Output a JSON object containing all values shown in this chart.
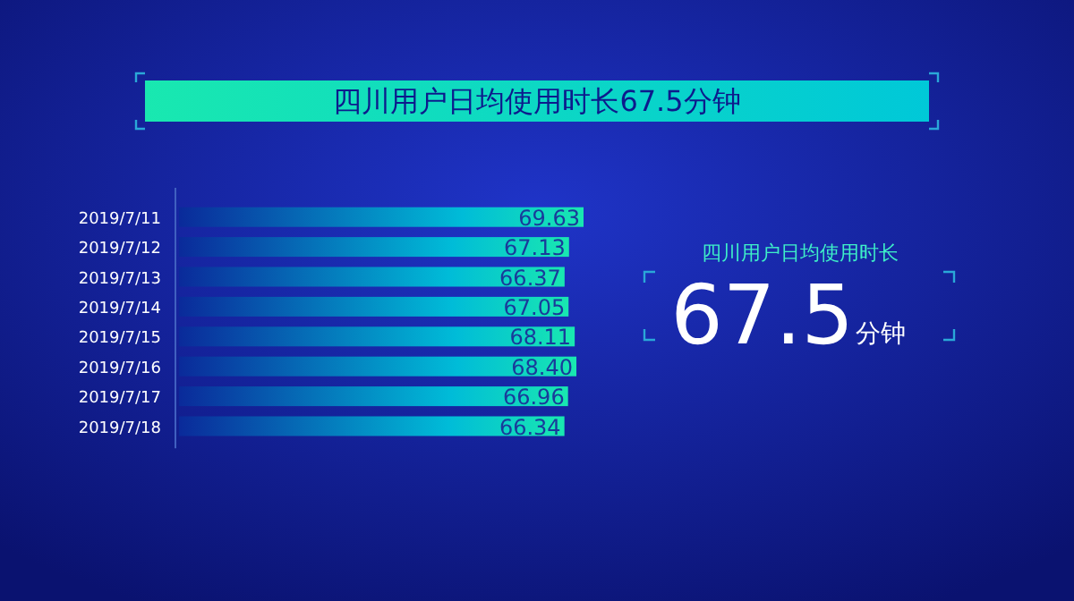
{
  "chart_data": {
    "type": "bar",
    "orientation": "horizontal",
    "title": "四川用户日均使用时长67.5分钟",
    "categories": [
      "2019/7/11",
      "2019/7/12",
      "2019/7/13",
      "2019/7/14",
      "2019/7/15",
      "2019/7/16",
      "2019/7/17",
      "2019/7/18"
    ],
    "values": [
      69.63,
      67.13,
      66.37,
      67.05,
      68.11,
      68.4,
      66.96,
      66.34
    ],
    "color": "#19e8b0",
    "value_labels": [
      "69.63",
      "67.13",
      "66.37",
      "67.05",
      "68.11",
      "68.40",
      "66.96",
      "66.34"
    ],
    "annotations": [
      "四川用户日均使用时长",
      "67.5",
      "分钟"
    ]
  }
}
